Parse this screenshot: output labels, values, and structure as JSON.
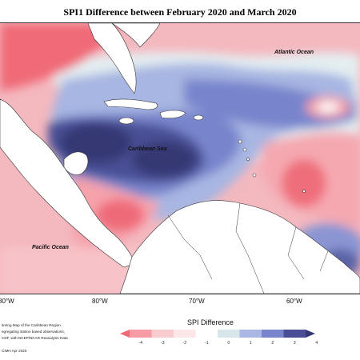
{
  "title": "SPI1 Difference between February 2020 and March 2020",
  "labels": {
    "atlantic": "Atlantic Ocean",
    "caribbean": "Caribbean Sea",
    "pacific": "Pacific Ocean"
  },
  "longitudes": [
    "80°W",
    "80°W",
    "70°W",
    "60°W"
  ],
  "credits": [
    "itoring Map of the Caribbean Region.",
    "egregating station based observations,",
    "CDF, with NCEP/NCAR Reanalysis Data",
    "CIMH Apr 2020"
  ],
  "legend": {
    "title": "SPI Difference",
    "ticks": [
      "-4",
      "-3",
      "-2",
      "-1",
      "0",
      "1",
      "2",
      "3",
      "4"
    ],
    "colors": [
      "#f06a78",
      "#f59ca5",
      "#f8cbcf",
      "#fbe6e8",
      "#ffffff",
      "#d6e6ea",
      "#aab6e3",
      "#7885cc",
      "#4a4f95",
      "#353873"
    ]
  }
}
